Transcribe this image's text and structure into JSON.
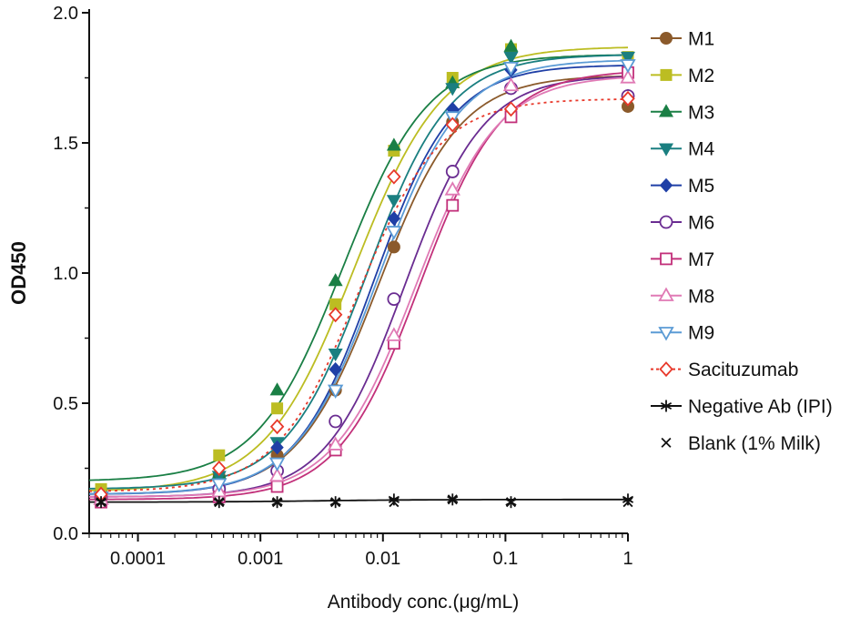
{
  "chart_data": {
    "type": "scatter",
    "xscale": "log",
    "xlabel": "Antibody conc.(μg/mL)",
    "ylabel": "OD450",
    "xlim": [
      4e-05,
      1
    ],
    "ylim": [
      0,
      2.0
    ],
    "x_ticks": [
      0.0001,
      0.001,
      0.01,
      0.1,
      1
    ],
    "x_tick_labels": [
      "0.0001",
      "0.001",
      "0.01",
      "0.1",
      "1"
    ],
    "y_ticks": [
      0,
      0.5,
      1.0,
      1.5,
      2.0
    ],
    "y_tick_labels": [
      "0.0",
      "0.5",
      "1.0",
      "1.5",
      "2.0"
    ],
    "x": [
      5e-05,
      0.00046,
      0.00137,
      0.0041,
      0.0123,
      0.037,
      0.111,
      1
    ],
    "legend_position": "right",
    "series": [
      {
        "name": "M1",
        "color": "#8B5A2B",
        "marker": "circle-filled",
        "line": "solid",
        "values": [
          0.16,
          0.22,
          0.3,
          0.55,
          1.1,
          1.58,
          1.85,
          1.64
        ],
        "fit": {
          "bottom": 0.15,
          "top": 1.76,
          "ec50": 0.0092,
          "hill": 1.3
        }
      },
      {
        "name": "M2",
        "color": "#BCBD22",
        "marker": "square-filled",
        "line": "solid",
        "values": [
          0.17,
          0.3,
          0.48,
          0.88,
          1.47,
          1.75,
          1.86,
          1.83
        ],
        "fit": {
          "bottom": 0.16,
          "top": 1.87,
          "ec50": 0.0058,
          "hill": 1.2
        }
      },
      {
        "name": "M3",
        "color": "#1A7F45",
        "marker": "triangle-up-filled",
        "line": "solid",
        "values": [
          0.15,
          0.23,
          0.55,
          0.97,
          1.49,
          1.73,
          1.87,
          1.75
        ],
        "fit": {
          "bottom": 0.2,
          "top": 1.84,
          "ec50": 0.0047,
          "hill": 1.25
        }
      },
      {
        "name": "M4",
        "color": "#1A7F80",
        "marker": "triangle-down-filled",
        "line": "solid",
        "values": [
          0.14,
          0.22,
          0.35,
          0.69,
          1.28,
          1.71,
          1.83,
          1.83
        ],
        "fit": {
          "bottom": 0.17,
          "top": 1.84,
          "ec50": 0.0075,
          "hill": 1.3
        }
      },
      {
        "name": "M5",
        "color": "#1F3FA6",
        "marker": "diamond-filled",
        "line": "solid",
        "values": [
          0.13,
          0.18,
          0.33,
          0.63,
          1.21,
          1.63,
          1.78,
          1.68
        ],
        "fit": {
          "bottom": 0.15,
          "top": 1.8,
          "ec50": 0.0085,
          "hill": 1.35
        }
      },
      {
        "name": "M6",
        "color": "#6A2C91",
        "marker": "circle-open",
        "line": "solid",
        "values": [
          0.14,
          0.17,
          0.24,
          0.43,
          0.9,
          1.39,
          1.71,
          1.68
        ],
        "fit": {
          "bottom": 0.14,
          "top": 1.76,
          "ec50": 0.015,
          "hill": 1.35
        }
      },
      {
        "name": "M7",
        "color": "#C2307A",
        "marker": "square-open",
        "line": "solid",
        "values": [
          0.12,
          0.14,
          0.18,
          0.32,
          0.73,
          1.26,
          1.6,
          1.77
        ],
        "fit": {
          "bottom": 0.13,
          "top": 1.78,
          "ec50": 0.02,
          "hill": 1.3
        }
      },
      {
        "name": "M8",
        "color": "#E07AB5",
        "marker": "triangle-up-open",
        "line": "solid",
        "values": [
          0.13,
          0.16,
          0.22,
          0.34,
          0.76,
          1.32,
          1.72,
          1.75
        ],
        "fit": {
          "bottom": 0.14,
          "top": 1.76,
          "ec50": 0.0185,
          "hill": 1.3
        }
      },
      {
        "name": "M9",
        "color": "#5B9BD5",
        "marker": "triangle-down-open",
        "line": "solid",
        "values": [
          0.14,
          0.19,
          0.27,
          0.55,
          1.16,
          1.6,
          1.79,
          1.8
        ],
        "fit": {
          "bottom": 0.15,
          "top": 1.82,
          "ec50": 0.0092,
          "hill": 1.3
        }
      },
      {
        "name": "Sacituzumab",
        "color": "#E8392B",
        "marker": "diamond-open",
        "line": "dotted",
        "values": [
          0.15,
          0.25,
          0.41,
          0.84,
          1.37,
          1.57,
          1.63,
          1.67
        ],
        "fit": {
          "bottom": 0.16,
          "top": 1.67,
          "ec50": 0.0062,
          "hill": 1.3
        }
      },
      {
        "name": "Negative Ab (IPI)",
        "color": "#111111",
        "marker": "asterisk",
        "line": "solid",
        "values": [
          0.12,
          0.12,
          0.12,
          0.12,
          0.13,
          0.13,
          0.12,
          0.13
        ],
        "fit": {
          "bottom": 0.12,
          "top": 0.13,
          "ec50": 0.003,
          "hill": 1.0
        }
      },
      {
        "name": "Blank (1% Milk)",
        "color": "#111111",
        "marker": "x",
        "line": "none",
        "values": [
          0.12,
          0.12,
          0.12,
          0.12,
          0.12,
          0.13,
          0.12,
          0.12
        ],
        "fit": null
      }
    ]
  }
}
